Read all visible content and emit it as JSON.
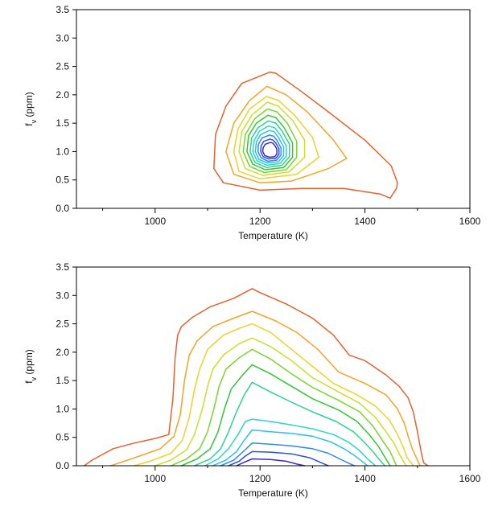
{
  "chart_data": [
    {
      "type": "line",
      "xlabel": "Temperature (K)",
      "ylabel_main": "f",
      "ylabel_sub": "v",
      "ylabel_unit": " (ppm)",
      "xlim": [
        850,
        1600
      ],
      "ylim": [
        0,
        3.5
      ],
      "x_tick_labels": [
        "1000",
        "1200",
        "1400",
        "1600"
      ],
      "y_tick_labels": [
        "0.0",
        "0.5",
        "1.0",
        "1.5",
        "2.0",
        "2.5",
        "3.0",
        "3.5"
      ],
      "grid": false,
      "legend": "none",
      "series": [
        {
          "color": "#e8612c",
          "x": [
            1219,
            1165,
            1135,
            1115,
            1112,
            1130,
            1200,
            1280,
            1360,
            1430,
            1448,
            1460,
            1462,
            1450,
            1400,
            1330,
            1280,
            1230,
            1219
          ],
          "y": [
            2.4,
            2.2,
            1.8,
            1.3,
            0.7,
            0.45,
            0.32,
            0.35,
            0.35,
            0.25,
            0.18,
            0.35,
            0.45,
            0.75,
            1.2,
            1.7,
            2.05,
            2.38,
            2.4
          ]
        },
        {
          "color": "#f5a324",
          "x": [
            1213,
            1180,
            1150,
            1135,
            1150,
            1200,
            1260,
            1330,
            1365,
            1340,
            1290,
            1250,
            1213
          ],
          "y": [
            2.15,
            1.9,
            1.5,
            1.0,
            0.6,
            0.45,
            0.48,
            0.7,
            0.88,
            1.2,
            1.7,
            2.0,
            2.15
          ]
        },
        {
          "color": "#f2d028",
          "x": [
            1212,
            1180,
            1158,
            1150,
            1160,
            1200,
            1270,
            1312,
            1300,
            1265,
            1235,
            1212
          ],
          "y": [
            1.97,
            1.75,
            1.4,
            1.0,
            0.65,
            0.52,
            0.6,
            0.9,
            1.25,
            1.65,
            1.9,
            1.97
          ]
        },
        {
          "color": "#c8e02a",
          "x": [
            1214,
            1185,
            1165,
            1160,
            1172,
            1205,
            1255,
            1285,
            1285,
            1262,
            1235,
            1214
          ],
          "y": [
            1.87,
            1.65,
            1.35,
            1.0,
            0.7,
            0.58,
            0.64,
            0.9,
            1.2,
            1.55,
            1.8,
            1.87
          ]
        },
        {
          "color": "#78d62c",
          "x": [
            1214,
            1190,
            1172,
            1168,
            1180,
            1208,
            1250,
            1270,
            1270,
            1252,
            1232,
            1214
          ],
          "y": [
            1.75,
            1.58,
            1.3,
            1.0,
            0.74,
            0.63,
            0.68,
            0.9,
            1.18,
            1.5,
            1.7,
            1.75
          ]
        },
        {
          "color": "#30c832",
          "x": [
            1215,
            1193,
            1178,
            1175,
            1186,
            1210,
            1245,
            1262,
            1262,
            1246,
            1230,
            1215
          ],
          "y": [
            1.64,
            1.5,
            1.28,
            1.0,
            0.78,
            0.68,
            0.72,
            0.9,
            1.15,
            1.42,
            1.6,
            1.64
          ]
        },
        {
          "color": "#2cd48c",
          "x": [
            1216,
            1196,
            1184,
            1181,
            1190,
            1212,
            1242,
            1256,
            1256,
            1242,
            1230,
            1216
          ],
          "y": [
            1.54,
            1.42,
            1.24,
            1.0,
            0.81,
            0.72,
            0.76,
            0.91,
            1.13,
            1.36,
            1.5,
            1.54
          ]
        },
        {
          "color": "#28d8c8",
          "x": [
            1216,
            1199,
            1189,
            1186,
            1194,
            1213,
            1238,
            1250,
            1250,
            1238,
            1228,
            1216
          ],
          "y": [
            1.45,
            1.36,
            1.2,
            1.0,
            0.84,
            0.76,
            0.79,
            0.92,
            1.1,
            1.3,
            1.42,
            1.45
          ]
        },
        {
          "color": "#2cc0f0",
          "x": [
            1217,
            1201,
            1193,
            1191,
            1198,
            1214,
            1235,
            1245,
            1245,
            1235,
            1227,
            1217
          ],
          "y": [
            1.37,
            1.3,
            1.17,
            1.0,
            0.86,
            0.8,
            0.82,
            0.93,
            1.08,
            1.25,
            1.35,
            1.37
          ]
        },
        {
          "color": "#2c8cf0",
          "x": [
            1218,
            1204,
            1197,
            1196,
            1202,
            1215,
            1232,
            1240,
            1240,
            1232,
            1226,
            1218
          ],
          "y": [
            1.29,
            1.24,
            1.13,
            1.0,
            0.89,
            0.83,
            0.85,
            0.94,
            1.06,
            1.2,
            1.27,
            1.29
          ]
        },
        {
          "color": "#2c50e6",
          "x": [
            1219,
            1207,
            1202,
            1201,
            1206,
            1216,
            1230,
            1236,
            1236,
            1230,
            1225,
            1219
          ],
          "y": [
            1.22,
            1.18,
            1.1,
            1.0,
            0.91,
            0.87,
            0.88,
            0.95,
            1.05,
            1.15,
            1.2,
            1.22
          ]
        },
        {
          "color": "#3c28c8",
          "x": [
            1220,
            1210,
            1206,
            1205,
            1209,
            1218,
            1228,
            1232,
            1232,
            1228,
            1224,
            1220
          ],
          "y": [
            1.16,
            1.13,
            1.07,
            1.0,
            0.93,
            0.9,
            0.91,
            0.96,
            1.04,
            1.11,
            1.15,
            1.16
          ]
        }
      ]
    },
    {
      "type": "line",
      "xlabel": "Temperature (K)",
      "ylabel_main": "f",
      "ylabel_sub": "v",
      "ylabel_unit": " (ppm)",
      "xlim": [
        850,
        1600
      ],
      "ylim": [
        0,
        3.5
      ],
      "x_tick_labels": [
        "1000",
        "1200",
        "1400",
        "1600"
      ],
      "y_tick_labels": [
        "0.0",
        "0.5",
        "1.0",
        "1.5",
        "2.0",
        "2.5",
        "3.0",
        "3.5"
      ],
      "grid": false,
      "legend": "none",
      "series": [
        {
          "color": "#e8612c",
          "x": [
            865,
            880,
            900,
            920,
            960,
            1000,
            1026,
            1034,
            1038,
            1043,
            1050,
            1072,
            1105,
            1150,
            1185,
            1200,
            1250,
            1300,
            1340,
            1370,
            1400,
            1440,
            1465,
            1482,
            1492,
            1500,
            1508,
            1512,
            1520
          ],
          "y": [
            0.0,
            0.1,
            0.2,
            0.3,
            0.4,
            0.48,
            0.55,
            1.2,
            1.9,
            2.3,
            2.45,
            2.62,
            2.8,
            2.95,
            3.12,
            3.05,
            2.85,
            2.6,
            2.3,
            1.95,
            1.85,
            1.6,
            1.4,
            1.2,
            0.95,
            0.6,
            0.2,
            0.05,
            0.0
          ]
        },
        {
          "color": "#f5a324",
          "x": [
            915,
            935,
            970,
            1010,
            1036,
            1048,
            1056,
            1065,
            1080,
            1110,
            1150,
            1185,
            1230,
            1270,
            1310,
            1350,
            1400,
            1440,
            1462,
            1475,
            1483,
            1490,
            1500,
            1505
          ],
          "y": [
            0.0,
            0.06,
            0.17,
            0.3,
            0.52,
            0.9,
            1.5,
            1.95,
            2.2,
            2.45,
            2.6,
            2.72,
            2.55,
            2.35,
            2.05,
            1.65,
            1.45,
            1.25,
            1.0,
            0.75,
            0.5,
            0.3,
            0.1,
            0.0
          ]
        },
        {
          "color": "#f2d028",
          "x": [
            960,
            990,
            1030,
            1052,
            1065,
            1075,
            1085,
            1100,
            1130,
            1160,
            1185,
            1220,
            1260,
            1300,
            1340,
            1385,
            1420,
            1447,
            1462,
            1472,
            1480,
            1492
          ],
          "y": [
            0.0,
            0.08,
            0.22,
            0.45,
            0.85,
            1.35,
            1.7,
            2.05,
            2.3,
            2.42,
            2.5,
            2.35,
            2.05,
            1.75,
            1.45,
            1.25,
            1.05,
            0.8,
            0.55,
            0.35,
            0.15,
            0.0
          ]
        },
        {
          "color": "#c8e02a",
          "x": [
            1000,
            1030,
            1060,
            1075,
            1090,
            1100,
            1110,
            1130,
            1160,
            1185,
            1220,
            1260,
            1300,
            1350,
            1390,
            1420,
            1440,
            1455,
            1466,
            1478
          ],
          "y": [
            0.0,
            0.1,
            0.28,
            0.55,
            1.0,
            1.4,
            1.7,
            1.95,
            2.15,
            2.25,
            2.1,
            1.85,
            1.55,
            1.3,
            1.1,
            0.85,
            0.6,
            0.4,
            0.2,
            0.0
          ]
        },
        {
          "color": "#78d62c",
          "x": [
            1030,
            1060,
            1085,
            1100,
            1112,
            1122,
            1135,
            1160,
            1185,
            1220,
            1260,
            1300,
            1350,
            1390,
            1415,
            1433,
            1448,
            1460
          ],
          "y": [
            0.0,
            0.12,
            0.3,
            0.6,
            1.0,
            1.4,
            1.7,
            1.9,
            2.05,
            1.88,
            1.62,
            1.38,
            1.15,
            0.95,
            0.7,
            0.45,
            0.25,
            0.0
          ]
        },
        {
          "color": "#30c832",
          "x": [
            1050,
            1080,
            1105,
            1120,
            1132,
            1145,
            1165,
            1185,
            1220,
            1260,
            1300,
            1350,
            1385,
            1408,
            1425,
            1438,
            1448
          ],
          "y": [
            0.0,
            0.12,
            0.3,
            0.6,
            1.0,
            1.35,
            1.58,
            1.78,
            1.62,
            1.4,
            1.18,
            0.98,
            0.78,
            0.55,
            0.35,
            0.15,
            0.0
          ]
        },
        {
          "color": "#2cd48c",
          "x": [
            1075,
            1105,
            1125,
            1140,
            1155,
            1170,
            1185,
            1220,
            1260,
            1300,
            1345,
            1378,
            1398,
            1415,
            1428,
            1438
          ],
          "y": [
            0.0,
            0.12,
            0.3,
            0.6,
            0.95,
            1.25,
            1.47,
            1.3,
            1.12,
            0.95,
            0.78,
            0.6,
            0.42,
            0.25,
            0.1,
            0.0
          ]
        },
        {
          "color": "#28d8c8",
          "x": [
            1095,
            1120,
            1140,
            1158,
            1172,
            1185,
            1220,
            1260,
            1300,
            1340,
            1368,
            1388,
            1405,
            1420
          ],
          "y": [
            0.0,
            0.12,
            0.3,
            0.55,
            0.78,
            0.82,
            0.78,
            0.72,
            0.65,
            0.55,
            0.42,
            0.28,
            0.12,
            0.0
          ]
        },
        {
          "color": "#2cc0f0",
          "x": [
            1110,
            1135,
            1155,
            1170,
            1185,
            1220,
            1260,
            1300,
            1335,
            1360,
            1380,
            1397,
            1405
          ],
          "y": [
            0.0,
            0.1,
            0.25,
            0.45,
            0.63,
            0.6,
            0.57,
            0.52,
            0.42,
            0.3,
            0.18,
            0.06,
            0.0
          ]
        },
        {
          "color": "#2c8cf0",
          "x": [
            1125,
            1150,
            1168,
            1185,
            1220,
            1260,
            1300,
            1330,
            1352,
            1370,
            1380
          ],
          "y": [
            0.0,
            0.1,
            0.25,
            0.4,
            0.38,
            0.35,
            0.3,
            0.22,
            0.12,
            0.04,
            0.0
          ]
        },
        {
          "color": "#2c50e6",
          "x": [
            1140,
            1160,
            1172,
            1185,
            1220,
            1260,
            1295,
            1315,
            1330
          ],
          "y": [
            0.0,
            0.08,
            0.17,
            0.25,
            0.24,
            0.21,
            0.14,
            0.06,
            0.0
          ]
        },
        {
          "color": "#3c28c8",
          "x": [
            1155,
            1172,
            1185,
            1220,
            1250,
            1270,
            1285
          ],
          "y": [
            0.0,
            0.07,
            0.12,
            0.11,
            0.08,
            0.03,
            0.0
          ]
        }
      ]
    }
  ]
}
